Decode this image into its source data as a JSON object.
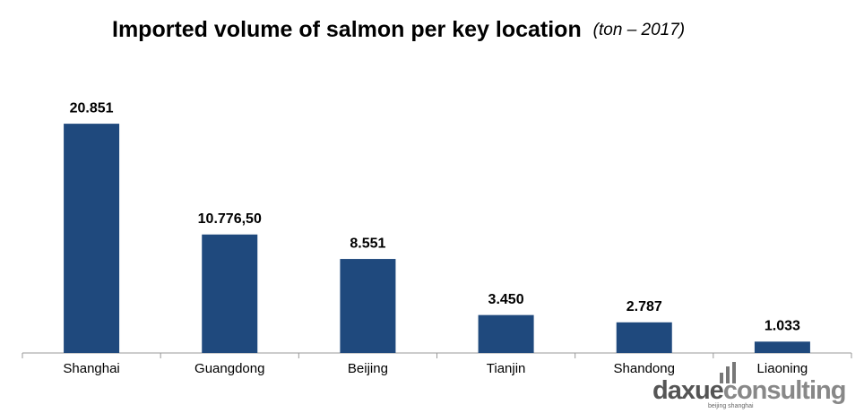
{
  "chart_data": {
    "type": "bar",
    "title": "Imported volume of salmon per key location",
    "subtitle": "(ton – 2017)",
    "categories": [
      "Shanghai",
      "Guangdong",
      "Beijing",
      "Tianjin",
      "Shandong",
      "Liaoning"
    ],
    "values": [
      20851,
      10776.5,
      8551,
      3450,
      2787,
      1033
    ],
    "value_labels": [
      "20.851",
      "10.776,50",
      "8.551",
      "3.450",
      "2.787",
      "1.033"
    ],
    "color": "#1f497d",
    "ylim": [
      0,
      22000
    ]
  },
  "logo": {
    "brand": "daxue",
    "suffix": "consulting",
    "tagline": "beijing shanghai"
  }
}
